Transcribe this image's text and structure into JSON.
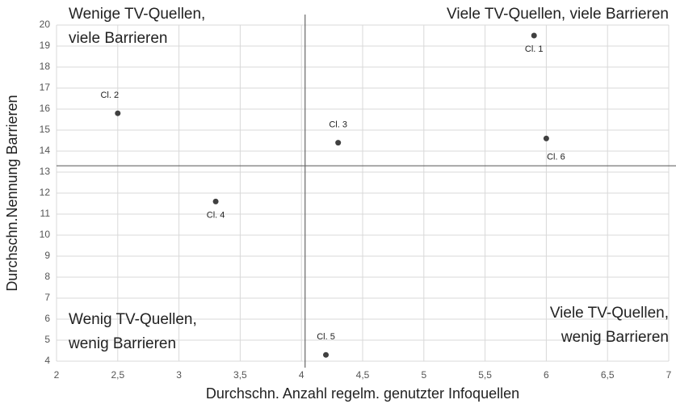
{
  "chart_data": {
    "type": "scatter",
    "xlabel": "Durchschn. Anzahl regelm. genutzter Infoquellen",
    "ylabel": "Durchschn.Nennung Barrieren",
    "x": [
      5.9,
      2.5,
      4.3,
      3.3,
      4.2,
      6.0
    ],
    "series": [
      {
        "color": "#404040",
        "values": [
          19.5,
          15.8,
          14.4,
          11.6,
          4.3,
          14.6
        ]
      }
    ],
    "point_labels": [
      "Cl. 1",
      "Cl. 2",
      "Cl. 3",
      "Cl. 4",
      "Cl. 5",
      "Cl. 6"
    ],
    "xlim": [
      2,
      7
    ],
    "ylim": [
      4,
      20
    ],
    "xticks": [
      2,
      {
        "value": 2.5,
        "label": "2,5"
      },
      3,
      {
        "value": 3.5,
        "label": "3,5"
      },
      4,
      {
        "value": 4.5,
        "label": "4,5"
      },
      5,
      {
        "value": 5.5,
        "label": "5,5"
      },
      6,
      {
        "value": 6.5,
        "label": "6,5"
      },
      7
    ],
    "yticks": [
      4,
      5,
      6,
      7,
      8,
      9,
      10,
      11,
      12,
      13,
      14,
      15,
      16,
      17,
      18,
      19,
      20
    ],
    "grid": true,
    "reference_lines": {
      "x": 4.03,
      "y": 13.3
    },
    "annotations": {
      "top_left": [
        "Wenige TV-Quellen,",
        "viele Barrieren"
      ],
      "top_right": [
        "Viele TV-Quellen, viele Barrieren"
      ],
      "bottom_left": [
        "Wenig TV-Quellen,",
        "wenig Barrieren"
      ],
      "bottom_right": [
        "Viele TV-Quellen,",
        "wenig Barrieren"
      ]
    }
  }
}
